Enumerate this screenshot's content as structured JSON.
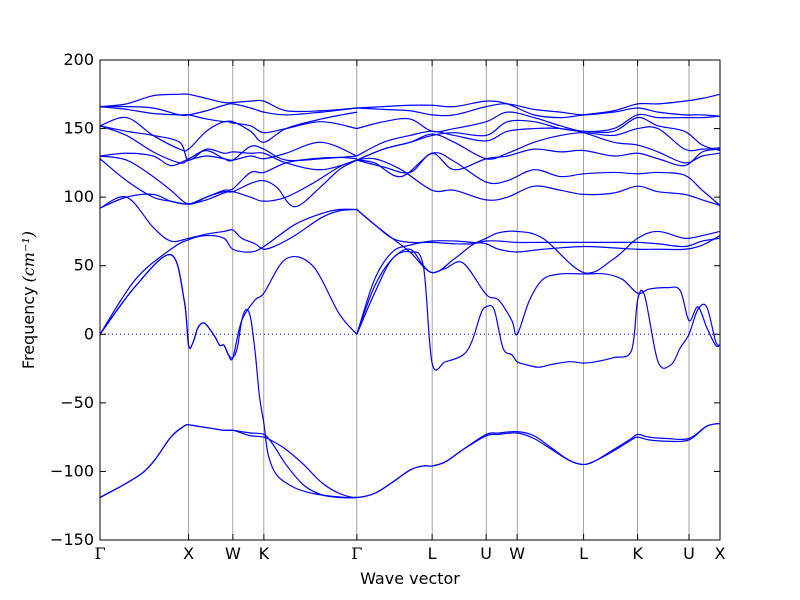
{
  "chart_data": {
    "type": "line",
    "xlabel": "Wave vector",
    "ylabel": "Frequency",
    "ylabel_unit": "(cm⁻¹)",
    "ylim": [
      -150,
      200
    ],
    "yticks": [
      -150,
      -100,
      -50,
      0,
      50,
      100,
      150,
      200
    ],
    "ytick_labels": [
      "−150",
      "−100",
      "−50",
      "0",
      "50",
      "100",
      "150",
      "200"
    ],
    "x_range": [
      0,
      7.0
    ],
    "high_symmetry_points": [
      {
        "label": "Γ",
        "x": 0.0
      },
      {
        "label": "X",
        "x": 1.0
      },
      {
        "label": "W",
        "x": 1.5
      },
      {
        "label": "K",
        "x": 1.85
      },
      {
        "label": "Γ",
        "x": 2.9
      },
      {
        "label": "L",
        "x": 3.75
      },
      {
        "label": "U",
        "x": 4.36
      },
      {
        "label": "W",
        "x": 4.71
      },
      {
        "label": "L",
        "x": 5.46
      },
      {
        "label": "K",
        "x": 6.07
      },
      {
        "label": "U",
        "x": 6.65
      },
      {
        "label": "X",
        "x": 7.0
      }
    ],
    "zero_line": {
      "y": 0,
      "style": "dotted",
      "color": "#0000ff"
    },
    "line_color": "#0000ff",
    "grid": false,
    "series": [
      {
        "x": [
          0,
          0.5,
          0.8,
          0.95,
          1.0,
          1.1,
          1.2,
          1.3,
          1.4,
          1.5,
          1.6,
          1.7,
          1.85,
          1.95,
          2.1,
          2.3,
          2.5,
          2.7,
          2.9,
          3.1,
          3.3,
          3.5,
          3.65,
          3.75,
          3.9,
          4.1,
          4.36,
          4.5,
          4.71,
          4.9,
          5.1,
          5.3,
          5.46,
          5.6,
          5.8,
          6.0,
          6.07,
          6.2,
          6.4,
          6.65,
          6.85,
          7.0
        ],
        "y": [
          -119,
          -100,
          -75,
          -67,
          -66,
          -67,
          -68,
          -69,
          -70,
          -70,
          -71,
          -72,
          -73,
          -80,
          -95,
          -110,
          -117,
          -119,
          -119,
          -116,
          -108,
          -99,
          -96,
          -96,
          -93,
          -84,
          -73,
          -72,
          -71,
          -74,
          -83,
          -92,
          -95,
          -92,
          -84,
          -76,
          -73,
          -75,
          -76,
          -76,
          -67,
          -65
        ]
      },
      {
        "x": [
          0,
          0.5,
          0.8,
          0.95,
          1.0,
          1.1,
          1.2,
          1.3,
          1.4,
          1.5,
          1.6,
          1.7,
          1.85,
          1.95,
          2.1,
          2.3,
          2.5,
          2.7,
          2.9,
          3.1,
          3.3,
          3.5,
          3.65,
          3.75,
          3.9,
          4.1,
          4.36,
          4.5,
          4.71,
          4.9,
          5.1,
          5.3,
          5.46,
          5.6,
          5.8,
          6.0,
          6.07,
          6.2,
          6.4,
          6.65,
          6.85,
          7.0
        ],
        "y": [
          -119,
          -100,
          -75,
          -67,
          -66,
          -67,
          -68,
          -69,
          -70,
          -70,
          -72,
          -74,
          -75,
          -78,
          -84,
          -95,
          -108,
          -116,
          -119,
          -116,
          -108,
          -99,
          -96,
          -96,
          -93,
          -84,
          -74,
          -73,
          -72,
          -76,
          -84,
          -92,
          -95,
          -92,
          -85,
          -77,
          -75,
          -77,
          -78,
          -77,
          -67,
          -65
        ]
      },
      {
        "x": [
          0,
          0.4,
          0.8,
          0.95,
          1.0,
          1.05,
          1.1,
          1.15,
          1.2,
          1.3,
          1.35,
          1.4,
          1.45,
          1.5,
          1.55,
          1.6,
          1.65,
          1.7,
          1.75,
          1.8,
          1.85,
          1.9,
          2.0,
          2.2,
          2.4,
          2.6,
          2.8,
          2.9
        ],
        "y": [
          0,
          35,
          58,
          25,
          -8,
          -6,
          4,
          8,
          7,
          -2,
          -8,
          -8,
          -15,
          -17,
          -10,
          10,
          18,
          12,
          -12,
          -45,
          -65,
          -88,
          -103,
          -112,
          -116,
          -118,
          -119,
          -119
        ]
      },
      {
        "x": [
          0,
          0.4,
          0.8,
          0.95,
          1.0,
          1.05,
          1.1,
          1.15,
          1.2,
          1.3,
          1.35,
          1.4,
          1.45,
          1.5,
          1.6,
          1.75,
          1.85,
          2.1,
          2.4,
          2.7,
          2.9
        ],
        "y": [
          0,
          35,
          58,
          25,
          -8,
          -6,
          4,
          8,
          7,
          -2,
          -8,
          -8,
          -15,
          -17,
          10,
          25,
          30,
          55,
          50,
          15,
          0
        ]
      },
      {
        "x": [
          2.9,
          3.1,
          3.3,
          3.5,
          3.65,
          3.75,
          3.9,
          4.1,
          4.2,
          4.3,
          4.36,
          4.45,
          4.55,
          4.65,
          4.71,
          4.8,
          4.95,
          5.1,
          5.3,
          5.46,
          5.6,
          5.8,
          6.0,
          6.07,
          6.15,
          6.3,
          6.45,
          6.55,
          6.65,
          6.75,
          6.85,
          6.95,
          7.0
        ],
        "y": [
          0,
          30,
          55,
          60,
          50,
          -21,
          -20,
          -15,
          -5,
          15,
          20,
          18,
          -10,
          -15,
          -20,
          -22,
          -24,
          -22,
          -20,
          -21,
          -20,
          -17,
          -12,
          25,
          28,
          -20,
          -22,
          -10,
          0,
          18,
          20,
          -5,
          -8
        ]
      },
      {
        "x": [
          2.9,
          3.1,
          3.3,
          3.5,
          3.65,
          3.75,
          3.9,
          4.1,
          4.36,
          4.5,
          4.65,
          4.71,
          4.85,
          5.0,
          5.2,
          5.46,
          5.7,
          5.9,
          6.07,
          6.2,
          6.4,
          6.55,
          6.65,
          6.75,
          6.85,
          6.95,
          7.0
        ],
        "y": [
          0,
          35,
          55,
          62,
          50,
          45,
          48,
          52,
          29,
          25,
          10,
          0,
          25,
          40,
          44,
          44,
          44,
          40,
          30,
          33,
          34,
          32,
          10,
          20,
          5,
          -8,
          -8
        ]
      },
      {
        "x": [
          0,
          0.4,
          0.8,
          1.0,
          1.2,
          1.4,
          1.5,
          1.7,
          1.85,
          2.2,
          2.5,
          2.7,
          2.9
        ],
        "y": [
          0,
          40,
          62,
          69,
          72,
          70,
          62,
          60,
          64,
          80,
          88,
          91,
          91
        ]
      },
      {
        "x": [
          0,
          0.3,
          0.6,
          0.8,
          1.0,
          1.2,
          1.4,
          1.5,
          1.6,
          1.75,
          1.85,
          2.0,
          2.2,
          2.5,
          2.7,
          2.9
        ],
        "y": [
          92,
          100,
          78,
          68,
          70,
          73,
          75,
          76,
          70,
          66,
          62,
          65,
          72,
          85,
          90,
          91
        ]
      },
      {
        "x": [
          2.9,
          3.1,
          3.3,
          3.5,
          3.75,
          4.0,
          4.2,
          4.36,
          4.5,
          4.71,
          5.0,
          5.46,
          5.8,
          6.07,
          6.3,
          6.6,
          6.8,
          7.0
        ],
        "y": [
          91,
          80,
          70,
          60,
          45,
          55,
          65,
          70,
          74,
          75,
          70,
          45,
          55,
          70,
          75,
          70,
          72,
          75
        ]
      },
      {
        "x": [
          2.9,
          3.1,
          3.3,
          3.5,
          3.75,
          4.0,
          4.2,
          4.36,
          4.5,
          4.71,
          5.0,
          5.46,
          5.8,
          6.07,
          6.3,
          6.6,
          6.8,
          7.0
        ],
        "y": [
          91,
          80,
          70,
          67,
          67,
          66,
          66,
          68,
          68,
          67,
          67,
          67,
          67,
          67,
          66,
          64,
          68,
          70
        ]
      },
      {
        "x": [
          2.9,
          3.1,
          3.3,
          3.5,
          3.75,
          4.0,
          4.2,
          4.36,
          4.5,
          4.71,
          5.0,
          5.46,
          5.8,
          6.07,
          6.3,
          6.6,
          6.8,
          7.0
        ],
        "y": [
          0,
          40,
          60,
          65,
          68,
          68,
          67,
          66,
          62,
          60,
          62,
          64,
          63,
          62,
          62,
          62,
          65,
          72
        ]
      },
      {
        "x": [
          0,
          0.3,
          0.6,
          0.8,
          1.0,
          1.2,
          1.4,
          1.5,
          1.7,
          1.85,
          2.0,
          2.2,
          2.5,
          2.7,
          2.9
        ],
        "y": [
          128,
          112,
          100,
          97,
          95,
          100,
          104,
          104,
          110,
          112,
          107,
          93,
          108,
          120,
          127
        ]
      },
      {
        "x": [
          0,
          0.3,
          0.6,
          0.8,
          1.0,
          1.2,
          1.4,
          1.5,
          1.7,
          1.85,
          2.1,
          2.4,
          2.7,
          2.9
        ],
        "y": [
          92,
          100,
          102,
          97,
          95,
          98,
          103,
          104,
          100,
          97,
          100,
          110,
          122,
          127
        ]
      },
      {
        "x": [
          2.9,
          3.1,
          3.4,
          3.75,
          4.0,
          4.36,
          4.6,
          4.9,
          5.2,
          5.46,
          5.8,
          6.07,
          6.3,
          6.6,
          6.8,
          7.0
        ],
        "y": [
          127,
          128,
          120,
          105,
          105,
          98,
          100,
          108,
          105,
          102,
          103,
          108,
          104,
          102,
          98,
          94
        ]
      },
      {
        "x": [
          2.9,
          3.1,
          3.4,
          3.75,
          4.0,
          4.36,
          4.6,
          4.9,
          5.2,
          5.46,
          5.8,
          6.07,
          6.3,
          6.6,
          6.8,
          7.0
        ],
        "y": [
          127,
          125,
          115,
          132,
          126,
          111,
          112,
          120,
          115,
          117,
          118,
          117,
          118,
          116,
          105,
          94
        ]
      },
      {
        "x": [
          0,
          0.3,
          0.6,
          0.8,
          1.0,
          1.2,
          1.4,
          1.5,
          1.7,
          1.85,
          2.1,
          2.4,
          2.7,
          2.9
        ],
        "y": [
          130,
          127,
          115,
          105,
          95,
          100,
          105,
          106,
          118,
          118,
          125,
          128,
          129,
          128
        ]
      },
      {
        "x": [
          0,
          0.3,
          0.6,
          0.8,
          1.0,
          1.2,
          1.4,
          1.5,
          1.7,
          1.85,
          2.1,
          2.5,
          2.9
        ],
        "y": [
          130,
          132,
          130,
          123,
          128,
          134,
          128,
          127,
          137,
          135,
          127,
          128,
          130
        ]
      },
      {
        "x": [
          0,
          0.3,
          0.6,
          0.9,
          1.0,
          1.2,
          1.4,
          1.5,
          1.7,
          1.85,
          2.1,
          2.5,
          2.9
        ],
        "y": [
          152,
          145,
          133,
          125,
          127,
          130,
          128,
          127,
          130,
          128,
          132,
          140,
          130
        ]
      },
      {
        "x": [
          0,
          0.3,
          0.6,
          0.9,
          1.0,
          1.2,
          1.4,
          1.5,
          1.7,
          1.85,
          2.1,
          2.5,
          2.9
        ],
        "y": [
          152,
          148,
          145,
          140,
          127,
          135,
          132,
          133,
          132,
          132,
          125,
          120,
          127
        ]
      },
      {
        "x": [
          0,
          0.3,
          0.6,
          0.9,
          1.0,
          1.2,
          1.4,
          1.5,
          1.7,
          1.85,
          2.1,
          2.5,
          2.9
        ],
        "y": [
          152,
          158,
          145,
          135,
          135,
          148,
          155,
          154,
          152,
          147,
          150,
          155,
          150
        ]
      },
      {
        "x": [
          0,
          0.3,
          0.6,
          0.9,
          1.0,
          1.2,
          1.4,
          1.5,
          1.7,
          1.85,
          2.1,
          2.5,
          2.9
        ],
        "y": [
          166,
          164,
          161,
          160,
          160,
          157,
          155,
          155,
          148,
          140,
          150,
          157,
          162
        ]
      },
      {
        "x": [
          0,
          0.3,
          0.6,
          0.9,
          1.0,
          1.2,
          1.4,
          1.5,
          1.7,
          1.85,
          2.1,
          2.5,
          2.9
        ],
        "y": [
          166,
          168,
          174,
          175,
          175,
          172,
          169,
          169,
          170,
          170,
          163,
          163,
          165
        ]
      },
      {
        "x": [
          0,
          0.3,
          0.6,
          0.9,
          1.0,
          1.2,
          1.4,
          1.5,
          1.7,
          1.85,
          2.1,
          2.5,
          2.9
        ],
        "y": [
          166,
          166,
          165,
          160,
          160,
          163,
          167,
          168,
          165,
          162,
          160,
          162,
          165
        ]
      },
      {
        "x": [
          2.9,
          3.2,
          3.5,
          3.75,
          4.0,
          4.36,
          4.6,
          4.9,
          5.2,
          5.46,
          5.8,
          6.07,
          6.3,
          6.6,
          6.8,
          7.0
        ],
        "y": [
          165,
          166,
          167,
          167,
          166,
          170,
          168,
          160,
          158,
          160,
          163,
          168,
          168,
          170,
          172,
          175
        ]
      },
      {
        "x": [
          2.9,
          3.2,
          3.5,
          3.75,
          4.0,
          4.36,
          4.6,
          4.9,
          5.2,
          5.46,
          5.8,
          6.07,
          6.3,
          6.6,
          6.8,
          7.0
        ],
        "y": [
          165,
          164,
          163,
          160,
          160,
          166,
          168,
          164,
          162,
          160,
          162,
          165,
          162,
          160,
          160,
          159
        ]
      },
      {
        "x": [
          2.9,
          3.2,
          3.5,
          3.75,
          4.0,
          4.36,
          4.6,
          4.9,
          5.2,
          5.46,
          5.8,
          6.07,
          6.3,
          6.6,
          6.8,
          7.0
        ],
        "y": [
          150,
          155,
          157,
          148,
          150,
          155,
          162,
          158,
          152,
          148,
          150,
          160,
          158,
          158,
          158,
          159
        ]
      },
      {
        "x": [
          2.9,
          3.2,
          3.5,
          3.75,
          4.0,
          4.36,
          4.6,
          4.9,
          5.2,
          5.46,
          5.8,
          6.07,
          6.3,
          6.6,
          6.8,
          7.0
        ],
        "y": [
          127,
          135,
          140,
          145,
          147,
          145,
          155,
          155,
          150,
          148,
          148,
          158,
          152,
          148,
          138,
          134
        ]
      },
      {
        "x": [
          2.9,
          3.2,
          3.5,
          3.75,
          4.0,
          4.36,
          4.6,
          4.9,
          5.2,
          5.46,
          5.8,
          6.07,
          6.3,
          6.6,
          6.8,
          7.0
        ],
        "y": [
          130,
          140,
          145,
          148,
          145,
          141,
          148,
          150,
          150,
          147,
          140,
          138,
          133,
          125,
          130,
          132
        ]
      },
      {
        "x": [
          2.9,
          3.2,
          3.5,
          3.75,
          4.0,
          4.36,
          4.6,
          4.9,
          5.2,
          5.46,
          5.8,
          6.07,
          6.3,
          6.6,
          6.8,
          7.0
        ],
        "y": [
          127,
          135,
          140,
          146,
          140,
          128,
          132,
          140,
          145,
          147,
          145,
          150,
          150,
          135,
          135,
          136
        ]
      },
      {
        "x": [
          2.9,
          3.2,
          3.5,
          3.75,
          4.0,
          4.36,
          4.6,
          4.9,
          5.2,
          5.46,
          5.8,
          6.07,
          6.3,
          6.6,
          6.8,
          7.0
        ],
        "y": [
          127,
          122,
          118,
          132,
          120,
          128,
          130,
          135,
          133,
          134,
          130,
          132,
          128,
          123,
          133,
          135
        ]
      }
    ]
  }
}
